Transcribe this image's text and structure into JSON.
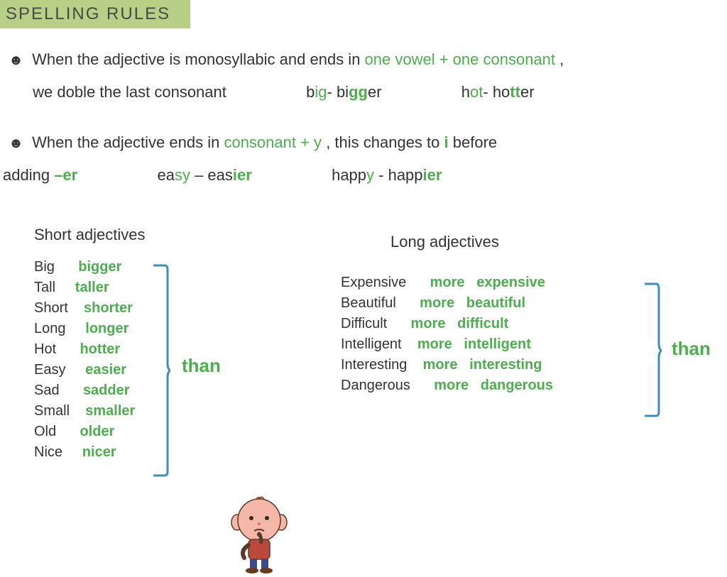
{
  "title": "SPELLING   RULES",
  "rule1": {
    "prefix": "When the adjective is monosyllabic and ends in ",
    "highlight": "one vowel + one consonant",
    "suffix": " ,",
    "line2_prefix": "we doble the last consonant",
    "ex1_a": "b",
    "ex1_b": "ig",
    "ex1_c": "- bi",
    "ex1_d": "gg",
    "ex1_e": "er",
    "ex2_a": "h",
    "ex2_b": "ot",
    "ex2_c": "- ho",
    "ex2_d": "tt",
    "ex2_e": "er"
  },
  "rule2": {
    "prefix": "When the adjective ends in ",
    "highlight": "consonant + y",
    "mid": " , this changes to ",
    "i": "i",
    "suffix": "   before",
    "line2_prefix": "adding ",
    "er": "–er",
    "ex1_a": "ea",
    "ex1_b": "sy",
    "ex1_c": " – eas",
    "ex1_d": "ier",
    "ex2_a": "happ",
    "ex2_b": "y",
    "ex2_c": " - happ",
    "ex2_d": "ier"
  },
  "short": {
    "title": "Short   adjectives",
    "items": [
      {
        "base": "Big",
        "comp": "bigger"
      },
      {
        "base": "Tall",
        "comp": "taller"
      },
      {
        "base": "Short",
        "comp": "shorter"
      },
      {
        "base": "Long",
        "comp": "longer"
      },
      {
        "base": "Hot",
        "comp": "hotter"
      },
      {
        "base": "Easy",
        "comp": "easier"
      },
      {
        "base": "Sad",
        "comp": "sadder"
      },
      {
        "base": "Small",
        "comp": "smaller"
      },
      {
        "base": "Old",
        "comp": "older"
      },
      {
        "base": "Nice",
        "comp": "nicer"
      }
    ]
  },
  "long": {
    "title": "Long   adjectives",
    "items": [
      {
        "base": "Expensive",
        "comp": "more   expensive"
      },
      {
        "base": "Beautiful",
        "comp": "more   beautiful"
      },
      {
        "base": "Difficult",
        "comp": "more   difficult"
      },
      {
        "base": "Intelligent",
        "comp": "more   intelligent"
      },
      {
        "base": "Interesting",
        "comp": "more   interesting"
      },
      {
        "base": "Dangerous",
        "comp": "more   dangerous"
      }
    ]
  },
  "than": "than",
  "colors": {
    "accent": "#4cae4c",
    "title_bg": "#b8cf86",
    "bracket": "#3b8fb8",
    "text": "#333333"
  }
}
